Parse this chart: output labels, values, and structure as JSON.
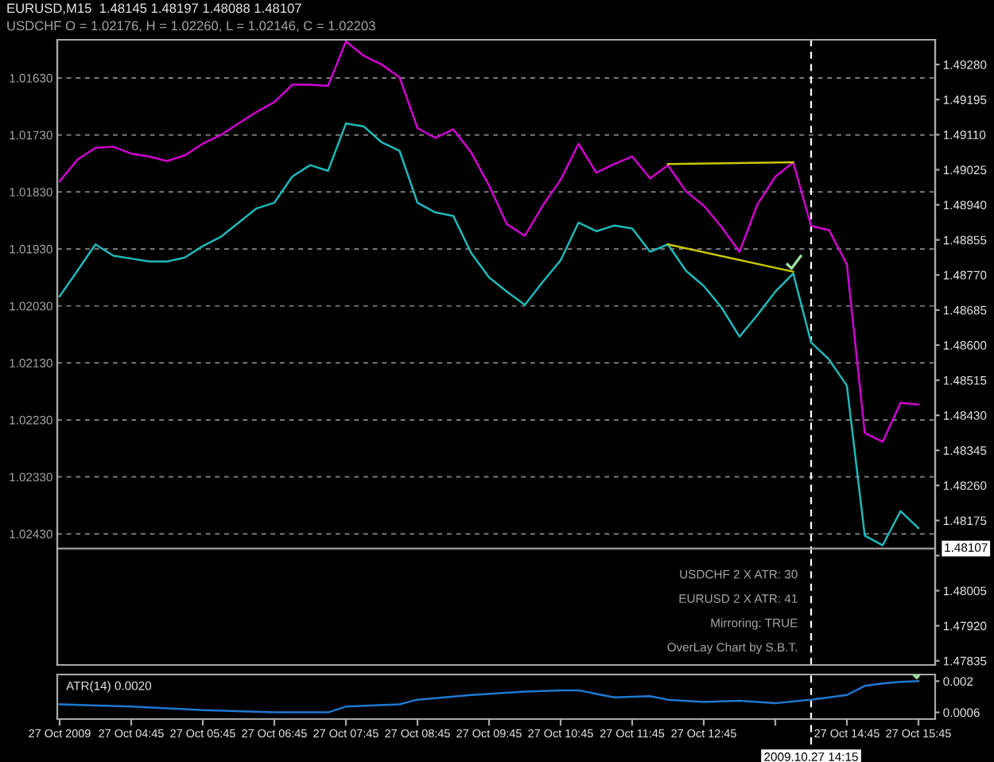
{
  "chart_data": [
    {
      "type": "line",
      "title": "EURUSD,M15  1.48145 1.48197 1.48088 1.48107",
      "subtitle": "USDCHF O = 1.02176, H = 1.02260, L = 1.02146, C = 1.02203",
      "annotations": [
        "USDCHF 2 X ATR: 30",
        "EURUSD 2 X ATR: 41",
        "Mirroring: TRUE",
        "OverLay Chart by S.B.T."
      ],
      "x": [
        "2009-10-27T03:45",
        "2009-10-27T04:00",
        "2009-10-27T04:15",
        "2009-10-27T04:30",
        "2009-10-27T04:45",
        "2009-10-27T05:00",
        "2009-10-27T05:15",
        "2009-10-27T05:30",
        "2009-10-27T05:45",
        "2009-10-27T06:00",
        "2009-10-27T06:15",
        "2009-10-27T06:30",
        "2009-10-27T06:45",
        "2009-10-27T07:00",
        "2009-10-27T07:15",
        "2009-10-27T07:30",
        "2009-10-27T07:45",
        "2009-10-27T08:00",
        "2009-10-27T08:15",
        "2009-10-27T08:30",
        "2009-10-27T08:45",
        "2009-10-27T09:00",
        "2009-10-27T09:15",
        "2009-10-27T09:30",
        "2009-10-27T09:45",
        "2009-10-27T10:00",
        "2009-10-27T10:15",
        "2009-10-27T10:30",
        "2009-10-27T10:45",
        "2009-10-27T11:00",
        "2009-10-27T11:15",
        "2009-10-27T11:30",
        "2009-10-27T11:45",
        "2009-10-27T12:00",
        "2009-10-27T12:15",
        "2009-10-27T12:30",
        "2009-10-27T12:45",
        "2009-10-27T13:00",
        "2009-10-27T13:15",
        "2009-10-27T13:30",
        "2009-10-27T13:45",
        "2009-10-27T14:00",
        "2009-10-27T14:15",
        "2009-10-27T14:30",
        "2009-10-27T14:45",
        "2009-10-27T15:00",
        "2009-10-27T15:15",
        "2009-10-27T15:30",
        "2009-10-27T15:45"
      ],
      "series": [
        {
          "color": "#20b8b8",
          "values": [
            1.02013,
            1.01968,
            1.01922,
            1.01942,
            1.01947,
            1.01952,
            1.01952,
            1.01945,
            1.01925,
            1.01909,
            1.01884,
            1.01859,
            1.01849,
            1.01803,
            1.01783,
            1.01793,
            1.0171,
            1.01715,
            1.01743,
            1.01758,
            1.01849,
            1.01866,
            1.01872,
            1.01937,
            1.0198,
            1.02005,
            1.02028,
            1.01988,
            1.0195,
            1.01884,
            1.01899,
            1.01889,
            1.01894,
            1.01935,
            1.01922,
            1.01968,
            1.01995,
            1.02033,
            1.02084,
            1.02046,
            1.02005,
            1.01973,
            1.02094,
            1.02124,
            1.0217,
            1.02433,
            1.0245,
            1.0239,
            1.0242
          ]
        },
        {
          "color": "#d000d0",
          "axis": "y2",
          "values": [
            1.48997,
            1.4905,
            1.49078,
            1.49081,
            1.49064,
            1.49057,
            1.49046,
            1.4906,
            1.49088,
            1.49109,
            1.49137,
            1.49165,
            1.49189,
            1.49231,
            1.49231,
            1.49228,
            1.49336,
            1.49301,
            1.4928,
            1.49249,
            1.49126,
            1.49102,
            1.49123,
            1.49067,
            1.48987,
            1.48893,
            1.48865,
            1.48938,
            1.49001,
            1.49088,
            1.49018,
            1.49039,
            1.49057,
            1.49004,
            1.49036,
            1.48973,
            1.48938,
            1.48886,
            1.48826,
            1.48941,
            1.49008,
            1.49043,
            1.48889,
            1.48879,
            1.48795,
            1.48387,
            1.48366,
            1.4846,
            1.48456
          ]
        },
        {
          "type": "line",
          "color": "#c8c800",
          "axis": "y2",
          "x": [
            "2009-10-27T12:15",
            "2009-10-27T14:00"
          ],
          "values": [
            1.49039,
            1.49043
          ]
        },
        {
          "type": "line",
          "color": "#c8c800",
          "x": [
            "2009-10-27T12:15",
            "2009-10-27T14:00"
          ],
          "values": [
            1.01922,
            1.0197
          ]
        }
      ],
      "xlim": [
        "2009-10-27T03:43",
        "2009-10-27T15:59"
      ],
      "ylim": [
        1.0266,
        1.01563
      ],
      "yticks": [
        {
          "value": 1.0163,
          "label": "1.01630"
        },
        {
          "value": 1.0173,
          "label": "1.01730"
        },
        {
          "value": 1.0183,
          "label": "1.01830"
        },
        {
          "value": 1.0193,
          "label": "1.01930"
        },
        {
          "value": 1.0203,
          "label": "1.02030"
        },
        {
          "value": 1.0213,
          "label": "1.02130"
        },
        {
          "value": 1.0223,
          "label": "1.02230"
        },
        {
          "value": 1.0233,
          "label": "1.02330"
        },
        {
          "value": 1.0243,
          "label": "1.02430"
        }
      ],
      "y2lim": [
        1.47825,
        1.4934
      ],
      "y2ticks": [
        {
          "value": 1.4928,
          "label": "1.49280"
        },
        {
          "value": 1.49195,
          "label": "1.49195"
        },
        {
          "value": 1.4911,
          "label": "1.49110"
        },
        {
          "value": 1.49025,
          "label": "1.49025"
        },
        {
          "value": 1.4894,
          "label": "1.48940"
        },
        {
          "value": 1.48855,
          "label": "1.48855"
        },
        {
          "value": 1.4877,
          "label": "1.48770"
        },
        {
          "value": 1.48685,
          "label": "1.48685"
        },
        {
          "value": 1.486,
          "label": "1.48600"
        },
        {
          "value": 1.48515,
          "label": "1.48515"
        },
        {
          "value": 1.4843,
          "label": "1.48430"
        },
        {
          "value": 1.48345,
          "label": "1.48345"
        },
        {
          "value": 1.4826,
          "label": "1.48260"
        },
        {
          "value": 1.48175,
          "label": "1.48175"
        },
        {
          "value": 1.4809,
          "label": null
        },
        {
          "value": 1.48005,
          "label": "1.48005"
        },
        {
          "value": 1.4792,
          "label": "1.47920"
        },
        {
          "value": 1.47835,
          "label": "1.47835"
        }
      ],
      "grid": "y",
      "tick_labels": "y",
      "ref_lines": [
        {
          "axis": "y2",
          "value": 1.48107,
          "label": "1.48107",
          "color": "#a0a0a0"
        },
        {
          "axis": "x",
          "value": "2009-10-27T14:15",
          "color": "#ffffff",
          "line_style": "dashed"
        }
      ]
    },
    {
      "type": "line",
      "title": "ATR(14) 0.0020",
      "series": [
        {
          "color": "#1e78d2",
          "x": [
            "2009-10-27T03:45",
            "2009-10-27T04:45",
            "2009-10-27T05:45",
            "2009-10-27T06:45",
            "2009-10-27T07:30",
            "2009-10-27T07:45",
            "2009-10-27T08:30",
            "2009-10-27T08:45",
            "2009-10-27T09:30",
            "2009-10-27T10:15",
            "2009-10-27T10:45",
            "2009-10-27T11:00",
            "2009-10-27T11:30",
            "2009-10-27T12:00",
            "2009-10-27T12:15",
            "2009-10-27T12:45",
            "2009-10-27T13:15",
            "2009-10-27T13:45",
            "2009-10-27T14:15",
            "2009-10-27T14:45",
            "2009-10-27T15:00",
            "2009-10-27T15:15",
            "2009-10-27T15:30",
            "2009-10-27T15:45"
          ],
          "values": [
            0.00096,
            0.00086,
            0.0007,
            0.0006,
            0.0006,
            0.00086,
            0.00096,
            0.00117,
            0.00138,
            0.00153,
            0.00159,
            0.00159,
            0.00127,
            0.00133,
            0.00117,
            0.00107,
            0.00112,
            0.00101,
            0.00117,
            0.00138,
            0.00179,
            0.0019,
            0.00197,
            0.002
          ]
        }
      ],
      "xlim": [
        "2009-10-27T03:43",
        "2009-10-27T15:59"
      ],
      "xticks": [
        {
          "value": "2009-10-27T03:45",
          "label": "27 Oct 2009"
        },
        {
          "value": "2009-10-27T04:45",
          "label": "27 Oct 04:45"
        },
        {
          "value": "2009-10-27T05:45",
          "label": "27 Oct 05:45"
        },
        {
          "value": "2009-10-27T06:45",
          "label": "27 Oct 06:45"
        },
        {
          "value": "2009-10-27T07:45",
          "label": "27 Oct 07:45"
        },
        {
          "value": "2009-10-27T08:45",
          "label": "27 Oct 08:45"
        },
        {
          "value": "2009-10-27T09:45",
          "label": "27 Oct 09:45"
        },
        {
          "value": "2009-10-27T10:45",
          "label": "27 Oct 10:45"
        },
        {
          "value": "2009-10-27T11:45",
          "label": "27 Oct 11:45"
        },
        {
          "value": "2009-10-27T12:45",
          "label": "27 Oct 12:45"
        },
        {
          "value": "2009-10-27T13:45",
          "label": null
        },
        {
          "value": "2009-10-27T14:45",
          "label": "27 Oct 14:45"
        },
        {
          "value": "2009-10-27T15:45",
          "label": "27 Oct 15:45"
        }
      ],
      "ylim": [
        0.0003,
        0.0023
      ],
      "yticks": [
        0.0006,
        0.002
      ],
      "ref_lines": [
        {
          "axis": "x",
          "value": "2009-10-27T14:15",
          "label": "2009.10.27 14:15",
          "color": "#ffffff",
          "line_style": "dashed"
        }
      ]
    }
  ]
}
